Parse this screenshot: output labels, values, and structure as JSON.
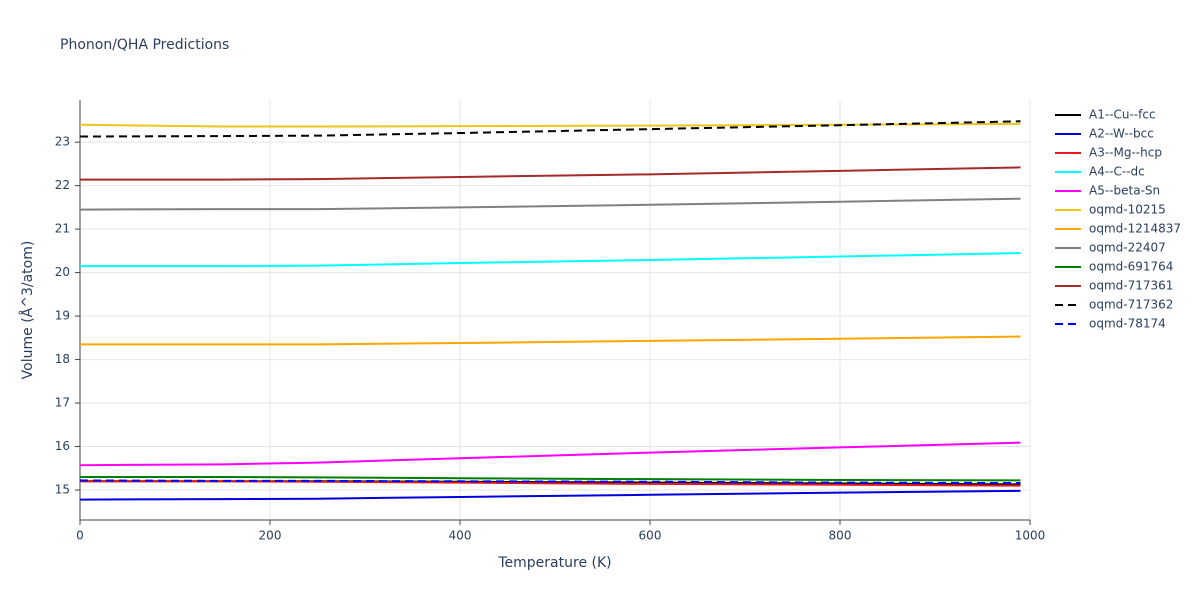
{
  "chart_data": {
    "type": "line",
    "title": "Phonon/QHA Predictions",
    "x_label": "Temperature (K)",
    "y_label": "Volume (Å^3/atom)",
    "x": [
      0,
      150,
      250,
      400,
      600,
      800,
      990
    ],
    "series": [
      {
        "name": "A1--Cu--fcc",
        "color": "#000000",
        "dash": "solid",
        "values": [
          15.2,
          15.2,
          15.2,
          15.19,
          15.17,
          15.15,
          15.13
        ]
      },
      {
        "name": "A2--W--bcc",
        "color": "#0000dd",
        "dash": "solid",
        "values": [
          14.78,
          14.79,
          14.8,
          14.84,
          14.89,
          14.94,
          14.98
        ]
      },
      {
        "name": "A3--Mg--hcp",
        "color": "#e41a1c",
        "dash": "solid",
        "values": [
          15.2,
          15.2,
          15.19,
          15.17,
          15.14,
          15.12,
          15.1
        ]
      },
      {
        "name": "A4--C--dc",
        "color": "#00ffff",
        "dash": "solid",
        "values": [
          20.15,
          20.15,
          20.16,
          20.22,
          20.29,
          20.37,
          20.45
        ]
      },
      {
        "name": "A5--beta-Sn",
        "color": "#ff00ff",
        "dash": "solid",
        "values": [
          15.57,
          15.59,
          15.63,
          15.73,
          15.86,
          15.98,
          16.09
        ]
      },
      {
        "name": "oqmd-10215",
        "color": "#f0c419",
        "dash": "solid",
        "values": [
          23.4,
          23.36,
          23.36,
          23.37,
          23.38,
          23.4,
          23.42
        ]
      },
      {
        "name": "oqmd-1214837",
        "color": "#ffa500",
        "dash": "solid",
        "values": [
          18.35,
          18.35,
          18.35,
          18.38,
          18.43,
          18.48,
          18.53
        ]
      },
      {
        "name": "oqmd-22407",
        "color": "#808080",
        "dash": "solid",
        "values": [
          21.45,
          21.46,
          21.46,
          21.5,
          21.56,
          21.63,
          21.7
        ]
      },
      {
        "name": "oqmd-691764",
        "color": "#008000",
        "dash": "solid",
        "values": [
          15.3,
          15.3,
          15.29,
          15.27,
          15.25,
          15.23,
          15.22
        ]
      },
      {
        "name": "oqmd-717361",
        "color": "#a52a2a",
        "dash": "solid",
        "values": [
          22.14,
          22.14,
          22.15,
          22.2,
          22.26,
          22.34,
          22.42
        ]
      },
      {
        "name": "oqmd-717362",
        "color": "#000000",
        "dash": "dash",
        "values": [
          23.13,
          23.14,
          23.15,
          23.21,
          23.3,
          23.39,
          23.48
        ]
      },
      {
        "name": "oqmd-78174",
        "color": "#0000ff",
        "dash": "dash",
        "values": [
          15.22,
          15.21,
          15.21,
          15.2,
          15.19,
          15.17,
          15.16
        ]
      }
    ],
    "xlim": [
      0,
      1000
    ],
    "xticks": [
      0,
      200,
      400,
      600,
      800,
      1000
    ],
    "ylim": [
      14.31,
      23.97
    ],
    "yticks": [
      15,
      16,
      17,
      18,
      19,
      20,
      21,
      22,
      23
    ],
    "grid": true,
    "legend": "right"
  }
}
